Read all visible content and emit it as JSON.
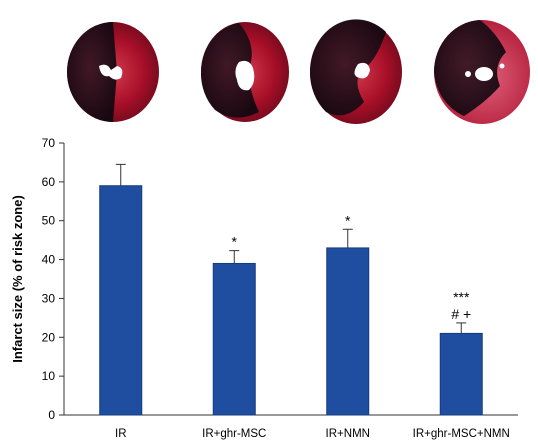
{
  "figure": {
    "panel_top": "heart-slice-photos",
    "slice_count": 4
  },
  "chart_data": {
    "type": "bar",
    "categories": [
      "IR",
      "IR+ghr-MSC",
      "IR+NMN",
      "IR+ghr-MSC+NMN"
    ],
    "values": [
      59,
      39,
      43,
      21
    ],
    "errors": [
      5.5,
      3.3,
      4.8,
      2.7
    ],
    "significance": [
      "",
      "*",
      "*",
      "***\n# +"
    ],
    "xlabel": "",
    "ylabel": "Infarct size (% of risk zone)",
    "ylim": [
      0,
      70
    ],
    "yticks": [
      0,
      10,
      20,
      30,
      40,
      50,
      60,
      70
    ],
    "grid": false,
    "legend": "none",
    "colors": {
      "bar_fill": "#1f4ea0",
      "bar_stroke": "#163b7a",
      "axis": "#333333",
      "text": "#000000",
      "tissue_dark": "#1a0d12",
      "tissue_red": "#b3112a",
      "tissue_pink": "#d9506a"
    }
  }
}
